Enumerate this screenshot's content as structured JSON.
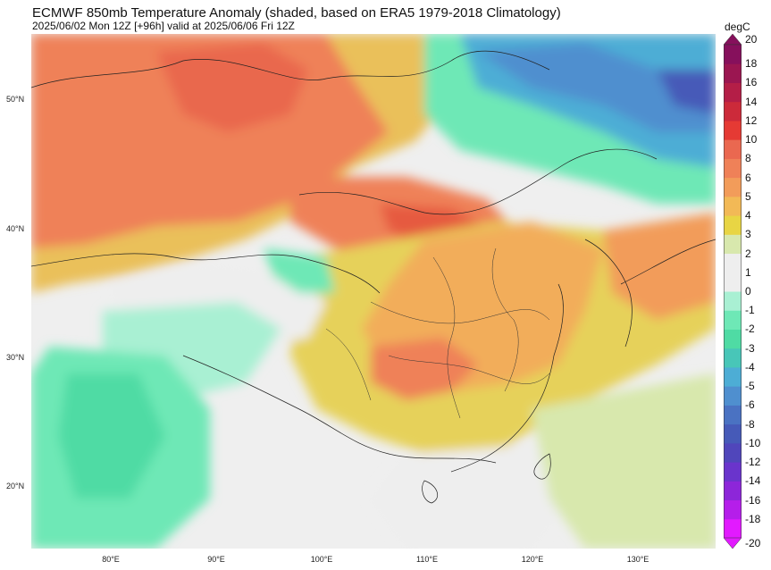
{
  "title": "ECMWF 850mb Temperature Anomaly (shaded, based on ERA5 1979-2018 Climatology)",
  "subtitle": "2025/06/02 Mon 12Z [+96h] valid at 2025/06/06 Fri 12Z",
  "colorbar": {
    "unit": "degC",
    "levels": [
      "-20",
      "-18",
      "-16",
      "-14",
      "-12",
      "-10",
      "-8",
      "-6",
      "-5",
      "-4",
      "-3",
      "-2",
      "-1",
      "0",
      "1",
      "2",
      "3",
      "4",
      "5",
      "6",
      "8",
      "10",
      "12",
      "14",
      "16",
      "18",
      "20"
    ],
    "colors": [
      "#e21aff",
      "#b51eea",
      "#8d26d9",
      "#6a34cc",
      "#5046bb",
      "#465ab8",
      "#4a72c2",
      "#4f8fcf",
      "#4dadd5",
      "#48c6b8",
      "#4fdba4",
      "#6ee8b6",
      "#a9f0d3",
      "#eeeeee",
      "#eeeeee",
      "#d8e8ad",
      "#e8d544",
      "#f2b956",
      "#f29c5a",
      "#ef8158",
      "#ea6850",
      "#e53a34",
      "#cc2a3a",
      "#b41e47",
      "#9b1651",
      "#86105c"
    ]
  },
  "map": {
    "lat_labels": [
      "50°N",
      "40°N",
      "30°N",
      "20°N"
    ],
    "lon_labels": [
      "80°E",
      "90°E",
      "100°E",
      "110°E",
      "120°E",
      "130°E"
    ]
  },
  "anomaly_regions": [
    {
      "name": "mongolia-xinjiang-warm",
      "level": "6 to 8"
    },
    {
      "name": "northeast-china-cold",
      "level": "-6 to -8"
    },
    {
      "name": "tibet-india-cool",
      "level": "-2 to -3"
    },
    {
      "name": "east-china-warm",
      "level": "3 to 5"
    }
  ]
}
